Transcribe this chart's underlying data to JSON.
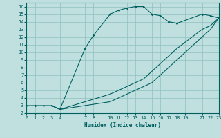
{
  "xlabel": "Humidex (Indice chaleur)",
  "bg_color": "#c0e0e0",
  "line_color": "#006060",
  "grid_color": "#90c0c0",
  "line1": {
    "x": [
      0,
      1,
      2,
      3,
      4,
      7,
      8,
      10,
      11,
      12,
      13,
      14,
      15,
      16,
      17,
      18,
      21,
      22,
      23
    ],
    "y": [
      3,
      3,
      3,
      3,
      2.5,
      10.5,
      12.2,
      15,
      15.5,
      15.8,
      16,
      16,
      15,
      14.8,
      14,
      13.8,
      15,
      14.8,
      14.5
    ]
  },
  "line2": {
    "x": [
      3,
      4,
      10,
      11,
      12,
      13,
      14,
      15,
      16,
      17,
      18,
      21,
      22,
      23
    ],
    "y": [
      3,
      2.5,
      4.5,
      5,
      5.5,
      6,
      6.5,
      7.5,
      8.5,
      9.5,
      10.5,
      13,
      13.5,
      14.5
    ]
  },
  "line3": {
    "x": [
      3,
      4,
      10,
      11,
      12,
      13,
      14,
      15,
      16,
      17,
      18,
      21,
      22,
      23
    ],
    "y": [
      3,
      2.5,
      3.5,
      4,
      4.5,
      5,
      5.5,
      6,
      7,
      8,
      9,
      12,
      13,
      14.5
    ]
  },
  "xlim": [
    0,
    23
  ],
  "ylim": [
    2,
    16.5
  ],
  "xticks": [
    0,
    1,
    2,
    3,
    4,
    7,
    8,
    10,
    11,
    12,
    13,
    14,
    15,
    16,
    17,
    18,
    19,
    21,
    22,
    23
  ],
  "yticks": [
    2,
    3,
    4,
    5,
    6,
    7,
    8,
    9,
    10,
    11,
    12,
    13,
    14,
    15,
    16
  ]
}
